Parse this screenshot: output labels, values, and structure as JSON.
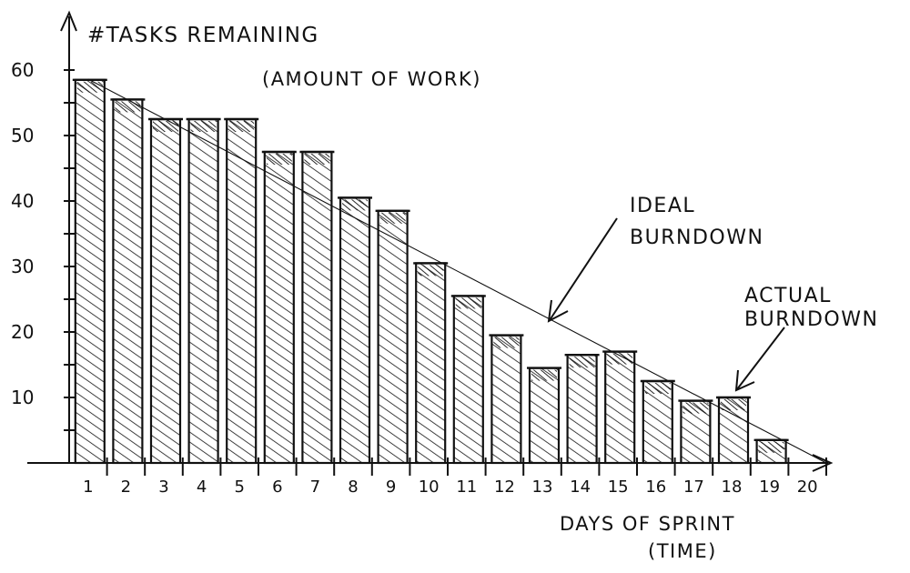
{
  "chart_data": {
    "type": "bar",
    "title": "#TASKS REMAINING",
    "subtitle": "(AMOUNT OF WORK)",
    "xlabel": "DAYS OF SPRINT",
    "xlabel_sub": "(TIME)",
    "ylabel": "",
    "ylim": [
      0,
      60
    ],
    "yticks": [
      10,
      20,
      30,
      40,
      50,
      60
    ],
    "ytick_labels": [
      "10",
      "20",
      "30",
      "40",
      "50",
      "60"
    ],
    "categories": [
      "1",
      "2",
      "3",
      "4",
      "5",
      "6",
      "7",
      "8",
      "9",
      "10",
      "11",
      "12",
      "13",
      "14",
      "15",
      "16",
      "17",
      "18",
      "19",
      "20"
    ],
    "series": [
      {
        "name": "ACTUAL BURNDOWN",
        "values": [
          58.5,
          55.5,
          52.5,
          52.5,
          52.5,
          47.5,
          47.5,
          40.5,
          38.5,
          30.5,
          25.5,
          19.5,
          14.5,
          16.5,
          17,
          12.5,
          9.5,
          10,
          3.5,
          0
        ]
      },
      {
        "name": "IDEAL BURNDOWN",
        "type": "line",
        "from": [
          0.5,
          60
        ],
        "to": [
          20,
          0
        ]
      }
    ],
    "annotations": {
      "ideal_label": [
        "IDEAL",
        "BURNDOWN"
      ],
      "actual_label": [
        "ACTUAL",
        "BURNDOWN"
      ]
    },
    "style": {
      "ink": "#111111",
      "paper": "#ffffff"
    }
  }
}
